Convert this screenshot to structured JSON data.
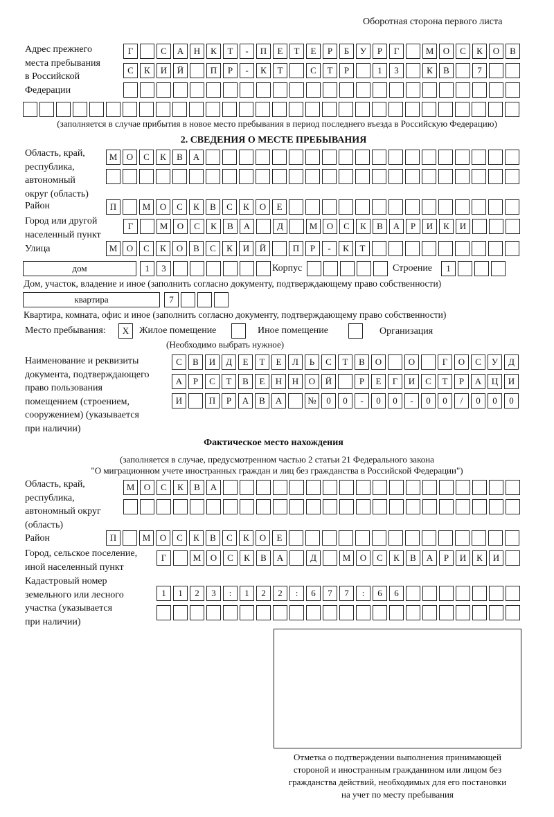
{
  "header": "Оборотная сторона первого листа",
  "prev_address": {
    "label": "Адрес прежнего\nместа пребывания\nв Российской\nФедерации",
    "rows": [
      "Г САНКТ-ПЕТЕРБУРГ МОСКОВ",
      "СКИЙ ПР-КТ СТР 13 КВ 7  ",
      "                        ",
      "                              "
    ],
    "note": "(заполняется в случае прибытия в новое место пребывания в период последнего въезда в Российскую Федерацию)"
  },
  "section2": {
    "title": "2. СВЕДЕНИЯ О МЕСТЕ ПРЕБЫВАНИЯ",
    "region_label": "Область, край,\nреспублика,\nавтономный\nокруг (область)",
    "region_rows": [
      "МОСКВА                   ",
      "                         "
    ],
    "district_label": "Район",
    "district_row": "П МОСКВСКОЕ              ",
    "city_label": "Город или другой\nнаселенный пункт",
    "city_row": "Г МОСКВА Д МОСКВАРИКИ   ",
    "street_label": "Улица",
    "street_row": "МОСКОВСКИЙ ПР-КТ         ",
    "house_type": "дом",
    "house_row": "13      ",
    "korpus_label": "Корпус",
    "korpus_row": "     ",
    "building_label": "Строение",
    "building_row": "1   ",
    "house_note": "Дом, участок, владение и иное (заполнить согласно документу, подтверждающему право собственности)",
    "flat_type": "квартира",
    "flat_row": "7   ",
    "flat_note": "Квартира, комната, офис и иное (заполнить согласно документу, подтверждающему право собственности)",
    "place_label": "Место пребывания:",
    "place_options": [
      {
        "label": "Жилое помещение",
        "mark": "X"
      },
      {
        "label": "Иное помещение",
        "mark": ""
      },
      {
        "label": "Организация",
        "mark": ""
      }
    ],
    "place_note": "(Необходимо выбрать нужное)",
    "doc_label": "Наименование и реквизиты\nдокумента, подтверждающего\nправо пользования\nпомещением (строением,\nсооружением) (указывается\nпри наличии)",
    "doc_rows": [
      "СВИДЕТЕЛЬСТВО О ГОСУД",
      "АРСТВЕННОЙ РЕГИСТРАЦИ",
      "И ПРАВА №00-00-00/000"
    ]
  },
  "actual": {
    "title": "Фактическое место нахождения",
    "note1": "(заполняется в случае, предусмотренном частью 2 статьи 21 Федерального закона",
    "note2": "\"О миграционном учете иностранных граждан и лиц без гражданства в Российской Федерации\")",
    "region_label": "Область, край,\nреспублика,\nавтономный округ\n(область)",
    "region_rows": [
      "МОСКВА                  ",
      "                        "
    ],
    "district_label": "Район",
    "district_row": "П МОСКВСКОЕ              ",
    "city_label": "Город, сельское поселение,\nиной населенный пункт",
    "city_row": "Г МОСКВА Д МОСКВАРИКИ ",
    "cadastre_label": "Кадастровый номер\nземельного или лесного\nучастка (указывается\nпри наличии)",
    "cadastre_rows": [
      "1123:122:677:66       ",
      "                      "
    ]
  },
  "stamp_caption": "Отметка о подтверждении выполнения принимающей\nстороной и иностранным гражданином или лицом без\nгражданства действий, необходимых для его постановки\nна учет по месту пребывания"
}
